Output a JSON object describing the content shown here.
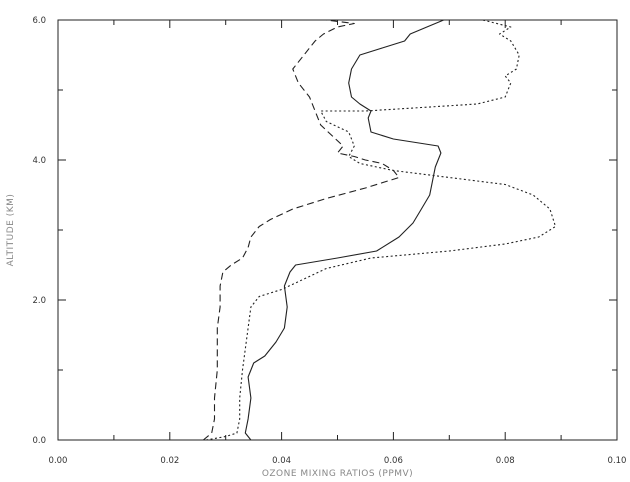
{
  "chart_data": {
    "type": "line",
    "xlabel": "OZONE MIXING RATIOS (PPMV)",
    "ylabel": "ALTITUDE (KM)",
    "xlim": [
      0.0,
      0.1
    ],
    "ylim": [
      0.0,
      6.0
    ],
    "x_ticks": [
      "0.00",
      "0.02",
      "0.04",
      "0.06",
      "0.08",
      "0.10"
    ],
    "y_ticks": [
      "0.0",
      "2.0",
      "4.0",
      "6.0"
    ],
    "grid": false,
    "legend": "none",
    "line_color": "#222222",
    "series": [
      {
        "style": "solid",
        "points": [
          [
            0.0345,
            0.0
          ],
          [
            0.0335,
            0.1
          ],
          [
            0.034,
            0.3
          ],
          [
            0.0345,
            0.6
          ],
          [
            0.034,
            0.9
          ],
          [
            0.035,
            1.1
          ],
          [
            0.037,
            1.2
          ],
          [
            0.039,
            1.4
          ],
          [
            0.0405,
            1.6
          ],
          [
            0.041,
            1.9
          ],
          [
            0.0405,
            2.2
          ],
          [
            0.0415,
            2.4
          ],
          [
            0.0425,
            2.5
          ],
          [
            0.05,
            2.6
          ],
          [
            0.057,
            2.7
          ],
          [
            0.061,
            2.9
          ],
          [
            0.0635,
            3.1
          ],
          [
            0.065,
            3.3
          ],
          [
            0.0665,
            3.5
          ],
          [
            0.067,
            3.7
          ],
          [
            0.0675,
            3.9
          ],
          [
            0.0685,
            4.1
          ],
          [
            0.068,
            4.2
          ],
          [
            0.06,
            4.3
          ],
          [
            0.056,
            4.4
          ],
          [
            0.0555,
            4.6
          ],
          [
            0.056,
            4.7
          ],
          [
            0.054,
            4.8
          ],
          [
            0.0525,
            4.9
          ],
          [
            0.052,
            5.1
          ],
          [
            0.0525,
            5.3
          ],
          [
            0.054,
            5.5
          ],
          [
            0.058,
            5.6
          ],
          [
            0.062,
            5.7
          ],
          [
            0.063,
            5.8
          ],
          [
            0.066,
            5.9
          ],
          [
            0.069,
            6.0
          ]
        ]
      },
      {
        "style": "dashed",
        "points": [
          [
            0.026,
            0.0
          ],
          [
            0.0275,
            0.1
          ],
          [
            0.028,
            0.3
          ],
          [
            0.028,
            0.6
          ],
          [
            0.0285,
            1.0
          ],
          [
            0.0285,
            1.3
          ],
          [
            0.0285,
            1.6
          ],
          [
            0.029,
            1.9
          ],
          [
            0.029,
            2.2
          ],
          [
            0.0295,
            2.4
          ],
          [
            0.031,
            2.5
          ],
          [
            0.033,
            2.6
          ],
          [
            0.034,
            2.75
          ],
          [
            0.0345,
            2.9
          ],
          [
            0.036,
            3.05
          ],
          [
            0.038,
            3.15
          ],
          [
            0.042,
            3.3
          ],
          [
            0.048,
            3.45
          ],
          [
            0.055,
            3.6
          ],
          [
            0.061,
            3.75
          ],
          [
            0.06,
            3.85
          ],
          [
            0.058,
            3.95
          ],
          [
            0.055,
            4.0
          ],
          [
            0.053,
            4.05
          ],
          [
            0.05,
            4.1
          ],
          [
            0.051,
            4.2
          ],
          [
            0.049,
            4.35
          ],
          [
            0.047,
            4.5
          ],
          [
            0.046,
            4.7
          ],
          [
            0.045,
            4.9
          ],
          [
            0.043,
            5.1
          ],
          [
            0.042,
            5.3
          ],
          [
            0.044,
            5.5
          ],
          [
            0.045,
            5.6
          ],
          [
            0.046,
            5.7
          ],
          [
            0.0475,
            5.8
          ],
          [
            0.05,
            5.9
          ],
          [
            0.053,
            5.95
          ],
          [
            0.048,
            6.0
          ]
        ]
      },
      {
        "style": "dotted",
        "points": [
          [
            0.0265,
            0.0
          ],
          [
            0.03,
            0.05
          ],
          [
            0.032,
            0.1
          ],
          [
            0.0325,
            0.3
          ],
          [
            0.0325,
            0.6
          ],
          [
            0.033,
            1.0
          ],
          [
            0.0335,
            1.3
          ],
          [
            0.034,
            1.6
          ],
          [
            0.0345,
            1.9
          ],
          [
            0.036,
            2.05
          ],
          [
            0.04,
            2.15
          ],
          [
            0.044,
            2.3
          ],
          [
            0.048,
            2.45
          ],
          [
            0.056,
            2.6
          ],
          [
            0.07,
            2.7
          ],
          [
            0.08,
            2.8
          ],
          [
            0.086,
            2.9
          ],
          [
            0.089,
            3.05
          ],
          [
            0.088,
            3.3
          ],
          [
            0.085,
            3.5
          ],
          [
            0.08,
            3.65
          ],
          [
            0.07,
            3.75
          ],
          [
            0.06,
            3.85
          ],
          [
            0.054,
            3.95
          ],
          [
            0.052,
            4.05
          ],
          [
            0.053,
            4.2
          ],
          [
            0.052,
            4.4
          ],
          [
            0.048,
            4.55
          ],
          [
            0.047,
            4.7
          ],
          [
            0.055,
            4.7
          ],
          [
            0.065,
            4.75
          ],
          [
            0.075,
            4.8
          ],
          [
            0.08,
            4.9
          ],
          [
            0.081,
            5.1
          ],
          [
            0.08,
            5.2
          ],
          [
            0.082,
            5.3
          ],
          [
            0.0825,
            5.5
          ],
          [
            0.081,
            5.7
          ],
          [
            0.079,
            5.8
          ],
          [
            0.081,
            5.9
          ],
          [
            0.076,
            6.0
          ]
        ]
      }
    ]
  }
}
